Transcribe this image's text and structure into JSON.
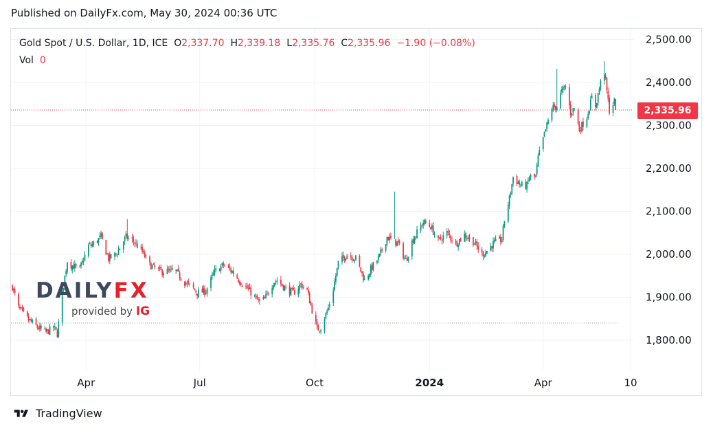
{
  "published": "Published on DailyFx.com, May 30, 2024 00:36 UTC",
  "legend": {
    "symbol": "Gold Spot / U.S. Dollar, 1D, ICE",
    "o_label": "O",
    "o_value": "2,337.70",
    "h_label": "H",
    "h_value": "2,339.18",
    "l_label": "L",
    "l_value": "2,335.76",
    "c_label": "C",
    "c_value": "2,335.96",
    "change": "−1.90 (−0.08%)",
    "vol_label": "Vol",
    "vol_value": "0"
  },
  "price_tag": "2,335.96",
  "watermark": {
    "word_a": "DAILY",
    "word_b": "FX",
    "provided": "provided by",
    "ig": "IG"
  },
  "branding": "TradingView",
  "colors": {
    "up": "#089981",
    "down": "#f23645",
    "grid": "#f0f3fa",
    "axis_text": "#131722",
    "price_line": "#f23645",
    "watermark_dark": "#3d4a5c",
    "watermark_accent": "#e5222b"
  },
  "chart_data": {
    "type": "candlestick",
    "title": "Gold Spot / U.S. Dollar, 1D, ICE",
    "y_ticks": [
      {
        "v": 2500,
        "label": "2,500.00"
      },
      {
        "v": 2400,
        "label": "2,400.00"
      },
      {
        "v": 2300,
        "label": "2,300.00"
      },
      {
        "v": 2200,
        "label": "2,200.00"
      },
      {
        "v": 2100,
        "label": "2,100.00"
      },
      {
        "v": 2000,
        "label": "2,000.00"
      },
      {
        "v": 1900,
        "label": "1,900.00"
      },
      {
        "v": 1800,
        "label": "1,800.00"
      }
    ],
    "x_ticks": [
      {
        "label": "Apr",
        "bold": false,
        "date": "2023-04-01"
      },
      {
        "label": "Jul",
        "bold": false,
        "date": "2023-07-01"
      },
      {
        "label": "Oct",
        "bold": false,
        "date": "2023-10-01"
      },
      {
        "label": "2024",
        "bold": true,
        "date": "2024-01-01"
      },
      {
        "label": "Apr",
        "bold": false,
        "date": "2024-04-01"
      },
      {
        "label": "10",
        "bold": false,
        "date": "2024-06-10"
      }
    ],
    "ylim": [
      1785,
      2505
    ],
    "last_price": 2335.96,
    "reference_line": 1840,
    "path": [
      [
        "2023-02-01",
        1925
      ],
      [
        "2023-02-06",
        1875
      ],
      [
        "2023-02-13",
        1850
      ],
      [
        "2023-02-21",
        1830
      ],
      [
        "2023-02-28",
        1818
      ],
      [
        "2023-03-06",
        1830
      ],
      [
        "2023-03-09",
        1815
      ],
      [
        "2023-03-13",
        1910
      ],
      [
        "2023-03-17",
        1985
      ],
      [
        "2023-03-20",
        1975
      ],
      [
        "2023-03-27",
        1965
      ],
      [
        "2023-04-03",
        2020
      ],
      [
        "2023-04-05",
        2020
      ],
      [
        "2023-04-13",
        2040
      ],
      [
        "2023-04-19",
        1990
      ],
      [
        "2023-04-25",
        2000
      ],
      [
        "2023-05-03",
        2040
      ],
      [
        "2023-05-09",
        2030
      ],
      [
        "2023-05-15",
        2010
      ],
      [
        "2023-05-22",
        1975
      ],
      [
        "2023-05-31",
        1960
      ],
      [
        "2023-06-06",
        1960
      ],
      [
        "2023-06-12",
        1960
      ],
      [
        "2023-06-19",
        1935
      ],
      [
        "2023-06-26",
        1920
      ],
      [
        "2023-06-29",
        1910
      ],
      [
        "2023-07-06",
        1915
      ],
      [
        "2023-07-13",
        1960
      ],
      [
        "2023-07-20",
        1975
      ],
      [
        "2023-07-27",
        1960
      ],
      [
        "2023-08-03",
        1935
      ],
      [
        "2023-08-10",
        1915
      ],
      [
        "2023-08-17",
        1890
      ],
      [
        "2023-08-22",
        1895
      ],
      [
        "2023-08-29",
        1935
      ],
      [
        "2023-09-01",
        1940
      ],
      [
        "2023-09-08",
        1920
      ],
      [
        "2023-09-14",
        1910
      ],
      [
        "2023-09-20",
        1930
      ],
      [
        "2023-09-25",
        1915
      ],
      [
        "2023-09-29",
        1870
      ],
      [
        "2023-10-03",
        1825
      ],
      [
        "2023-10-06",
        1830
      ],
      [
        "2023-10-12",
        1875
      ],
      [
        "2023-10-16",
        1920
      ],
      [
        "2023-10-20",
        1980
      ],
      [
        "2023-10-27",
        2000
      ],
      [
        "2023-11-03",
        1990
      ],
      [
        "2023-11-10",
        1940
      ],
      [
        "2023-11-15",
        1965
      ],
      [
        "2023-11-22",
        1995
      ],
      [
        "2023-11-28",
        2040
      ],
      [
        "2023-12-04",
        2030
      ],
      [
        "2023-12-07",
        2025
      ],
      [
        "2023-12-13",
        1985
      ],
      [
        "2023-12-18",
        2030
      ],
      [
        "2023-12-21",
        2045
      ],
      [
        "2023-12-27",
        2075
      ],
      [
        "2024-01-02",
        2065
      ],
      [
        "2024-01-08",
        2030
      ],
      [
        "2024-01-15",
        2050
      ],
      [
        "2024-01-22",
        2025
      ],
      [
        "2024-01-29",
        2045
      ],
      [
        "2024-02-05",
        2030
      ],
      [
        "2024-02-12",
        2000
      ],
      [
        "2024-02-15",
        2005
      ],
      [
        "2024-02-21",
        2025
      ],
      [
        "2024-02-28",
        2035
      ],
      [
        "2024-03-01",
        2080
      ],
      [
        "2024-03-05",
        2130
      ],
      [
        "2024-03-08",
        2180
      ],
      [
        "2024-03-14",
        2160
      ],
      [
        "2024-03-19",
        2160
      ],
      [
        "2024-03-21",
        2180
      ],
      [
        "2024-03-26",
        2180
      ],
      [
        "2024-03-28",
        2225
      ],
      [
        "2024-04-03",
        2290
      ],
      [
        "2024-04-08",
        2340
      ],
      [
        "2024-04-12",
        2345
      ],
      [
        "2024-04-16",
        2380
      ],
      [
        "2024-04-19",
        2390
      ],
      [
        "2024-04-23",
        2330
      ],
      [
        "2024-04-26",
        2340
      ],
      [
        "2024-04-30",
        2290
      ],
      [
        "2024-05-03",
        2305
      ],
      [
        "2024-05-06",
        2320
      ],
      [
        "2024-05-10",
        2365
      ],
      [
        "2024-05-13",
        2345
      ],
      [
        "2024-05-17",
        2400
      ],
      [
        "2024-05-20",
        2425
      ],
      [
        "2024-05-22",
        2380
      ],
      [
        "2024-05-24",
        2335
      ],
      [
        "2024-05-28",
        2355
      ],
      [
        "2024-05-29",
        2336
      ]
    ]
  }
}
